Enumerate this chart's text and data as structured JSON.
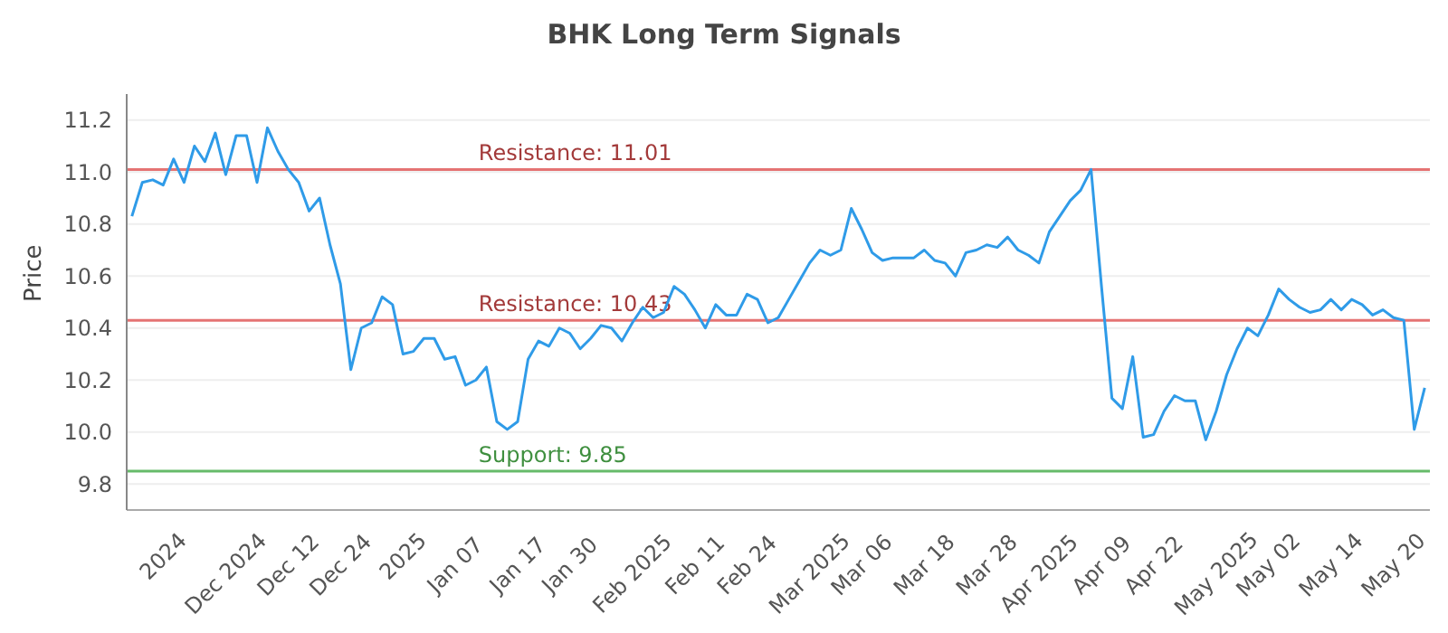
{
  "chart_data": {
    "type": "line",
    "title": "BHK Long Term Signals",
    "ylabel": "Price",
    "categories": [
      null,
      null,
      null,
      "2024",
      null,
      null,
      null,
      null,
      null,
      "Dec 2024",
      null,
      null,
      null,
      null,
      null,
      "Dec 12",
      null,
      null,
      null,
      null,
      "Dec 24",
      null,
      null,
      null,
      null,
      null,
      "2025",
      null,
      null,
      null,
      null,
      "Jan 07",
      null,
      null,
      null,
      null,
      null,
      "Jan 17",
      null,
      null,
      null,
      null,
      "Jan 30",
      null,
      null,
      null,
      null,
      null,
      "Feb 2025",
      null,
      null,
      null,
      null,
      null,
      "Feb 11",
      null,
      null,
      null,
      null,
      "Feb 24",
      null,
      null,
      null,
      null,
      null,
      "Mar 2025",
      null,
      null,
      null,
      null,
      "Mar 06",
      null,
      null,
      null,
      null,
      null,
      "Mar 18",
      null,
      null,
      null,
      null,
      null,
      "Mar 28",
      null,
      null,
      null,
      null,
      "Apr 2025",
      null,
      null,
      null,
      null,
      null,
      "Apr 09",
      null,
      null,
      null,
      null,
      "Apr 22",
      null,
      null,
      null,
      null,
      null,
      "May 2025",
      null,
      null,
      null,
      null,
      "May 02",
      null,
      null,
      null,
      null,
      null,
      "May 14",
      null,
      null,
      null,
      null,
      null,
      "May 20",
      null,
      null,
      null
    ],
    "series": [
      {
        "color": "#2f9be8",
        "values": [
          10.83,
          10.96,
          10.97,
          10.95,
          11.05,
          10.96,
          11.1,
          11.04,
          11.15,
          10.99,
          11.14,
          11.14,
          10.96,
          11.17,
          11.08,
          11.01,
          10.96,
          10.85,
          10.9,
          10.72,
          10.57,
          10.24,
          10.4,
          10.42,
          10.52,
          10.49,
          10.3,
          10.31,
          10.36,
          10.36,
          10.28,
          10.29,
          10.18,
          10.2,
          10.25,
          10.04,
          10.01,
          10.04,
          10.28,
          10.35,
          10.33,
          10.4,
          10.38,
          10.32,
          10.36,
          10.41,
          10.4,
          10.35,
          10.42,
          10.48,
          10.44,
          10.46,
          10.56,
          10.53,
          10.47,
          10.4,
          10.49,
          10.45,
          10.45,
          10.53,
          10.51,
          10.42,
          10.44,
          10.51,
          10.58,
          10.65,
          10.7,
          10.68,
          10.7,
          10.86,
          10.78,
          10.69,
          10.66,
          10.67,
          10.67,
          10.67,
          10.7,
          10.66,
          10.65,
          10.6,
          10.69,
          10.7,
          10.72,
          10.71,
          10.75,
          10.7,
          10.68,
          10.65,
          10.77,
          10.83,
          10.89,
          10.93,
          11.01,
          10.56,
          10.13,
          10.09,
          10.29,
          9.98,
          9.99,
          10.08,
          10.14,
          10.12,
          10.12,
          9.97,
          10.08,
          10.22,
          10.32,
          10.4,
          10.37,
          10.45,
          10.55,
          10.51,
          10.48,
          10.46,
          10.47,
          10.51,
          10.47,
          10.51,
          10.49,
          10.45,
          10.47,
          10.44,
          10.43,
          10.01,
          10.17
        ]
      }
    ],
    "ylim": [
      9.7,
      11.3
    ],
    "yticks": [
      9.8,
      {
        "value": 10,
        "label": "10.0"
      },
      10.2,
      10.4,
      10.6,
      10.8,
      {
        "value": 11,
        "label": "11.0"
      },
      11.2
    ],
    "grid": "y",
    "legend": false,
    "marker": "none",
    "line_style": "solid",
    "ref_lines": [
      {
        "axis": "y",
        "value": 11.01,
        "label": "Resistance: 11.01",
        "color": "#e57373"
      },
      {
        "axis": "y",
        "value": 10.43,
        "label": "Resistance: 10.43",
        "color": "#e57373"
      },
      {
        "axis": "y",
        "value": 9.85,
        "label": "Support: 9.85",
        "color": "#66bb6a"
      }
    ]
  }
}
